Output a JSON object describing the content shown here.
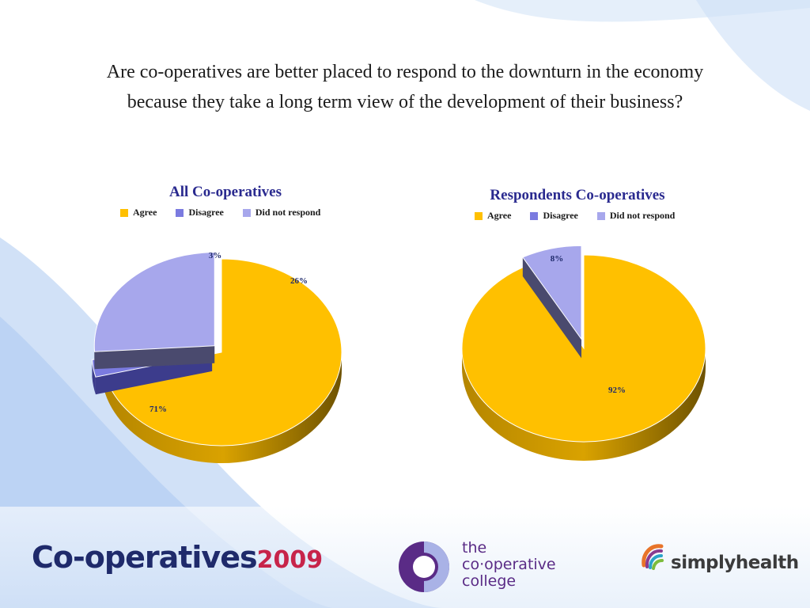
{
  "question": {
    "line1": "Are co-operatives are better placed to respond to the downturn in the economy",
    "line2": "because they take a long term view of the development of their business?"
  },
  "colors": {
    "agree": "#FFC000",
    "disagree": "#7B7BE0",
    "no_response": "#A7A7EC"
  },
  "chart_data": [
    {
      "type": "pie",
      "title": "All Co-operatives",
      "legend": [
        "Agree",
        "Disagree",
        "Did not respond"
      ],
      "slices": [
        {
          "label": "Agree",
          "value": 71,
          "display": "71%"
        },
        {
          "label": "Disagree",
          "value": 3,
          "display": "3%"
        },
        {
          "label": "Did not respond",
          "value": 26,
          "display": "26%"
        }
      ]
    },
    {
      "type": "pie",
      "title": "Respondents Co-operatives",
      "legend": [
        "Agree",
        "Disagree",
        "Did not respond"
      ],
      "slices": [
        {
          "label": "Agree",
          "value": 92,
          "display": "92%"
        },
        {
          "label": "Did not respond",
          "value": 8,
          "display": "8%"
        }
      ]
    }
  ],
  "logos": {
    "coops_main": "Co-operatives",
    "coops_year": "2009",
    "college_line1": "the",
    "college_line2": "co·operative",
    "college_line3": "college",
    "simplyhealth": "simplyhealth"
  }
}
